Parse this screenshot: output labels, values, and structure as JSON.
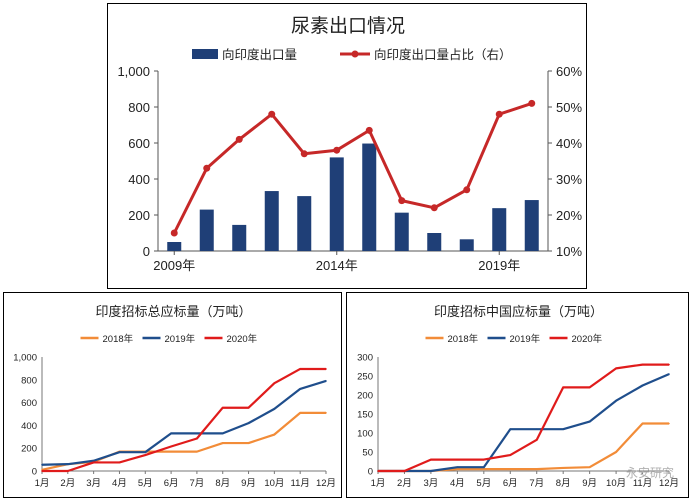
{
  "chart_data": [
    {
      "type": "bar",
      "title": "尿素出口情况",
      "x_ticks": [
        "2009年",
        "2014年",
        "2019年"
      ],
      "x": [
        "2009年",
        "2010年",
        "2011年",
        "2012年",
        "2013年",
        "2014年",
        "2015年",
        "2016年",
        "2017年",
        "2018年",
        "2019年",
        "2020年"
      ],
      "series": [
        {
          "name": "向印度出口量",
          "type": "bar",
          "axis": "left",
          "color": "#1f3f77",
          "values": [
            50,
            230,
            145,
            333,
            305,
            520,
            597,
            213,
            100,
            65,
            238,
            283
          ]
        },
        {
          "name": "向印度出口量占比（右）",
          "type": "line",
          "axis": "right",
          "color": "#c62828",
          "values": [
            15,
            33,
            41,
            48,
            37,
            38,
            43.5,
            24,
            22,
            27,
            48,
            51
          ]
        }
      ],
      "ylim": [
        0,
        1000
      ],
      "yticks": [
        "0",
        "200",
        "400",
        "600",
        "800",
        "1,000"
      ],
      "y2lim": [
        10,
        60
      ],
      "y2ticks": [
        "10%",
        "20%",
        "30%",
        "40%",
        "50%",
        "60%"
      ],
      "legend": "top-center",
      "grid": false
    },
    {
      "type": "line",
      "title": "印度招标总应标量（万吨）",
      "categories": [
        "1月",
        "2月",
        "3月",
        "4月",
        "5月",
        "6月",
        "7月",
        "8月",
        "9月",
        "10月",
        "11月",
        "12月"
      ],
      "series": [
        {
          "name": "2018年",
          "color": "#f28c38",
          "values": [
            10,
            60,
            80,
            170,
            170,
            170,
            170,
            245,
            245,
            320,
            510,
            510
          ]
        },
        {
          "name": "2019年",
          "color": "#1f4e8c",
          "values": [
            55,
            60,
            90,
            165,
            165,
            330,
            330,
            330,
            420,
            545,
            720,
            790
          ]
        },
        {
          "name": "2020年",
          "color": "#e01b1b",
          "values": [
            0,
            0,
            75,
            75,
            140,
            215,
            285,
            555,
            555,
            770,
            895,
            895
          ]
        }
      ],
      "ylim": [
        0,
        1000
      ],
      "yticks": [
        "0",
        "200",
        "400",
        "600",
        "800",
        "1,000"
      ],
      "legend": "top-center",
      "grid": false
    },
    {
      "type": "line",
      "title": "印度招标中国应标量（万吨）",
      "categories": [
        "1月",
        "2月",
        "3月",
        "4月",
        "5月",
        "6月",
        "7月",
        "8月",
        "9月",
        "10月",
        "11月",
        "12月"
      ],
      "series": [
        {
          "name": "2018年",
          "color": "#f28c38",
          "values": [
            0,
            0,
            0,
            5,
            5,
            5,
            5,
            8,
            10,
            50,
            125,
            125
          ]
        },
        {
          "name": "2019年",
          "color": "#1f4e8c",
          "values": [
            0,
            0,
            0,
            10,
            10,
            110,
            110,
            110,
            130,
            185,
            225,
            255
          ]
        },
        {
          "name": "2020年",
          "color": "#e01b1b",
          "values": [
            0,
            0,
            30,
            30,
            30,
            42,
            82,
            220,
            220,
            270,
            280,
            280
          ]
        }
      ],
      "ylim": [
        0,
        300
      ],
      "yticks": [
        "0",
        "50",
        "100",
        "150",
        "200",
        "250",
        "300"
      ],
      "legend": "top-center",
      "grid": false
    }
  ],
  "watermark": "永安研究"
}
